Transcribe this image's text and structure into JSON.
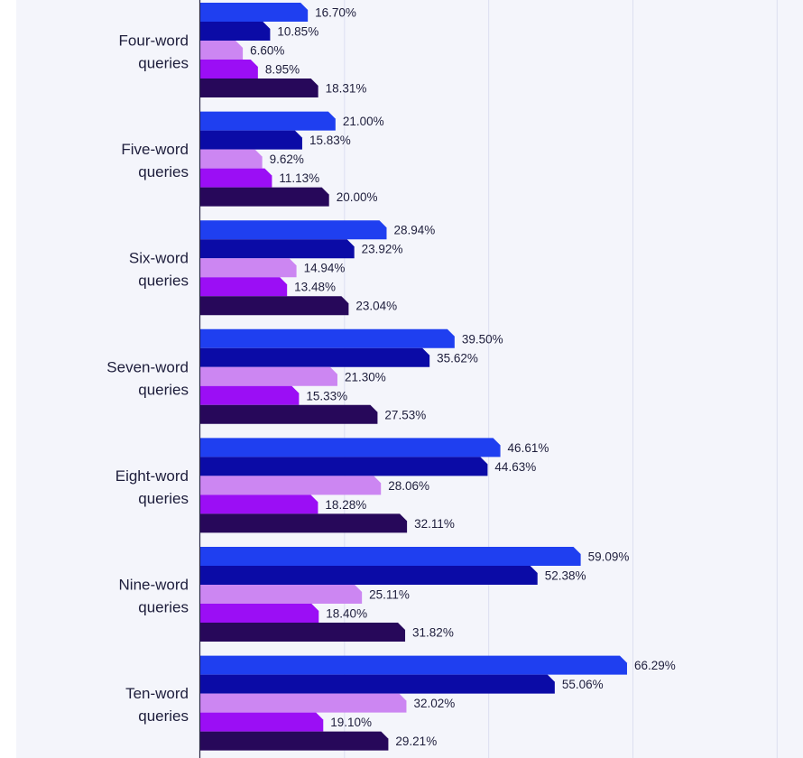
{
  "chart_data": {
    "type": "bar",
    "orientation": "horizontal",
    "categories": [
      [
        "Four-word",
        "queries"
      ],
      [
        "Five-word",
        "queries"
      ],
      [
        "Six-word",
        "queries"
      ],
      [
        "Seven-word",
        "queries"
      ],
      [
        "Eight-word",
        "queries"
      ],
      [
        "Nine-word",
        "queries"
      ],
      [
        "Ten-word",
        "queries"
      ]
    ],
    "series": [
      {
        "color": "#1f3ff0",
        "values": [
          16.7,
          21.0,
          28.94,
          39.5,
          46.61,
          59.09,
          66.29
        ],
        "labels": [
          "16.70%",
          "21.00%",
          "28.94%",
          "39.50%",
          "46.61%",
          "59.09%",
          "66.29%"
        ]
      },
      {
        "color": "#0b0ba6",
        "values": [
          10.85,
          15.83,
          23.92,
          35.62,
          44.63,
          52.38,
          55.06
        ],
        "labels": [
          "10.85%",
          "15.83%",
          "23.92%",
          "35.62%",
          "44.63%",
          "52.38%",
          "55.06%"
        ]
      },
      {
        "color": "#cc86f2",
        "values": [
          6.6,
          9.62,
          14.94,
          21.3,
          28.06,
          25.11,
          32.02
        ],
        "labels": [
          "6.60%",
          "9.62%",
          "14.94%",
          "21.30%",
          "28.06%",
          "25.11%",
          "32.02%"
        ]
      },
      {
        "color": "#9b0ef5",
        "values": [
          8.95,
          11.13,
          13.48,
          15.33,
          18.28,
          18.4,
          19.1
        ],
        "labels": [
          "8.95%",
          "11.13%",
          "13.48%",
          "15.33%",
          "18.28%",
          "18.40%",
          "19.10%"
        ]
      },
      {
        "color": "#27085a",
        "values": [
          18.31,
          20.0,
          23.04,
          27.53,
          32.11,
          31.82,
          29.21
        ],
        "labels": [
          "18.31%",
          "20.00%",
          "23.04%",
          "27.53%",
          "32.11%",
          "31.82%",
          "29.21%"
        ]
      }
    ],
    "xlim": [
      0,
      90
    ],
    "grid": true,
    "legend": "none"
  }
}
